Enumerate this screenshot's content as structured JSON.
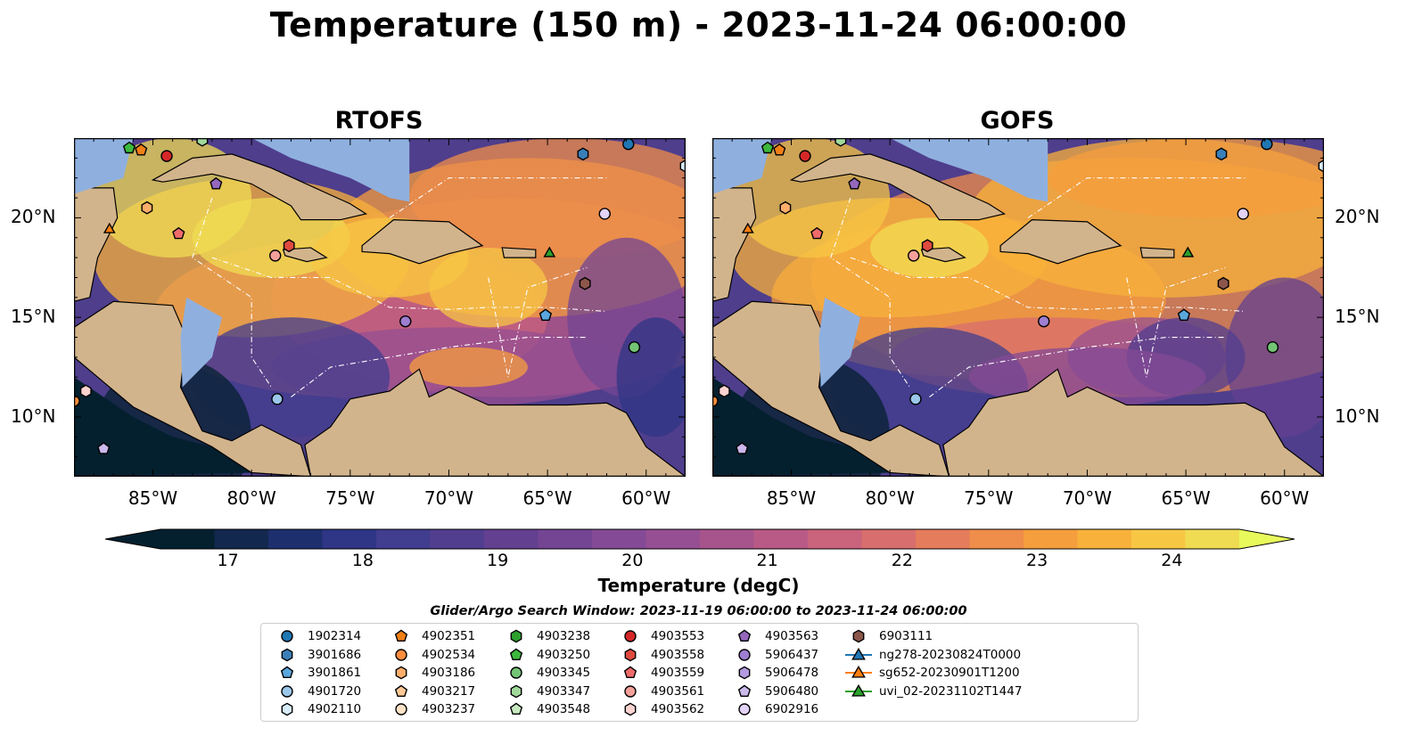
{
  "title": "Temperature (150 m) - 2023-11-24 06:00:00",
  "panels": [
    {
      "title": "RTOFS"
    },
    {
      "title": "GOFS"
    }
  ],
  "axes": {
    "lon_ticks": [
      "85°W",
      "80°W",
      "75°W",
      "70°W",
      "65°W",
      "60°W"
    ],
    "lat_ticks": [
      "20°N",
      "15°N",
      "10°N"
    ],
    "lon_range": [
      -89,
      -58
    ],
    "lat_range": [
      7,
      24
    ]
  },
  "colorbar": {
    "label": "Temperature (degC)",
    "ticks": [
      "17",
      "18",
      "19",
      "20",
      "21",
      "22",
      "23",
      "24"
    ],
    "range": [
      16.5,
      24.5
    ],
    "step": 0.5,
    "colormap": "thermal",
    "colors": [
      "#04202f",
      "#13284e",
      "#1e2f6e",
      "#2f3685",
      "#413d8f",
      "#523e8f",
      "#634090",
      "#734593",
      "#844a95",
      "#964f92",
      "#a8548c",
      "#b95a86",
      "#ca637c",
      "#d86e6e",
      "#e57c5c",
      "#ef8d4a",
      "#f59e3d",
      "#f8b23b",
      "#f7c744",
      "#f0dc53"
    ],
    "extend_low": "#04202f",
    "extend_high": "#e8fa5b"
  },
  "legend": {
    "title": "Glider/Argo Search Window: 2023-11-19 06:00:00 to 2023-11-24 06:00:00",
    "entries": [
      {
        "label": "1902314",
        "marker": "circle",
        "color": "#1f77b4"
      },
      {
        "label": "3901686",
        "marker": "hexagon",
        "color": "#3a7fb8"
      },
      {
        "label": "3901861",
        "marker": "pentagon",
        "color": "#5aa6dd"
      },
      {
        "label": "4901720",
        "marker": "circle",
        "color": "#9ac7ea"
      },
      {
        "label": "4902110",
        "marker": "hexagon",
        "color": "#d6ecf9"
      },
      {
        "label": "4902351",
        "marker": "pentagon",
        "color": "#f07f16"
      },
      {
        "label": "4902534",
        "marker": "circle",
        "color": "#fd8d3c"
      },
      {
        "label": "4903186",
        "marker": "hexagon",
        "color": "#fdae6b"
      },
      {
        "label": "4903217",
        "marker": "pentagon",
        "color": "#fdc896"
      },
      {
        "label": "4903237",
        "marker": "circle",
        "color": "#fde2c6"
      },
      {
        "label": "4903238",
        "marker": "hexagon",
        "color": "#2ca02c"
      },
      {
        "label": "4903250",
        "marker": "pentagon",
        "color": "#3cb83c"
      },
      {
        "label": "4903345",
        "marker": "circle",
        "color": "#74c476"
      },
      {
        "label": "4903347",
        "marker": "hexagon",
        "color": "#a1d99b"
      },
      {
        "label": "4903548",
        "marker": "pentagon",
        "color": "#c7e9c0"
      },
      {
        "label": "4903553",
        "marker": "circle",
        "color": "#d62728"
      },
      {
        "label": "4903558",
        "marker": "hexagon",
        "color": "#e04a3f"
      },
      {
        "label": "4903559",
        "marker": "pentagon",
        "color": "#ef6b6b"
      },
      {
        "label": "4903561",
        "marker": "circle",
        "color": "#f4a09a"
      },
      {
        "label": "4903562",
        "marker": "hexagon",
        "color": "#fbd3d0"
      },
      {
        "label": "4903563",
        "marker": "pentagon",
        "color": "#9467bd"
      },
      {
        "label": "5906437",
        "marker": "circle",
        "color": "#9e7fd1"
      },
      {
        "label": "5906478",
        "marker": "hexagon",
        "color": "#b49ae0"
      },
      {
        "label": "5906480",
        "marker": "pentagon",
        "color": "#cbb8ec"
      },
      {
        "label": "6902916",
        "marker": "circle",
        "color": "#e3d3f7"
      },
      {
        "label": "6903111",
        "marker": "hexagon",
        "color": "#8c564b"
      },
      {
        "label": "ng278-20230824T0000",
        "marker": "triangle-line",
        "color": "#1f77b4"
      },
      {
        "label": "sg652-20230901T1200",
        "marker": "triangle-line",
        "color": "#ff7f0e"
      },
      {
        "label": "uvi_02-20231102T1447",
        "marker": "triangle-line",
        "color": "#2ca02c"
      }
    ]
  },
  "markers_on_map": [
    {
      "id": "1902314",
      "lon": -60.9,
      "lat": 23.7
    },
    {
      "id": "3901686",
      "lon": -63.2,
      "lat": 23.2
    },
    {
      "id": "3901861",
      "lon": -65.1,
      "lat": 15.1
    },
    {
      "id": "4901720",
      "lon": -78.7,
      "lat": 10.9
    },
    {
      "id": "4902110",
      "lon": -58.0,
      "lat": 22.6
    },
    {
      "id": "4902351",
      "lon": -85.6,
      "lat": 23.4
    },
    {
      "id": "4903186",
      "lon": -85.3,
      "lat": 20.5
    },
    {
      "id": "4903250",
      "lon": -86.2,
      "lat": 23.5
    },
    {
      "id": "4903345",
      "lon": -60.6,
      "lat": 13.5
    },
    {
      "id": "4903347",
      "lon": -82.5,
      "lat": 23.9
    },
    {
      "id": "4903553",
      "lon": -84.3,
      "lat": 23.1
    },
    {
      "id": "4903558",
      "lon": -78.1,
      "lat": 18.6
    },
    {
      "id": "4903559",
      "lon": -83.7,
      "lat": 19.2
    },
    {
      "id": "4903561",
      "lon": -78.8,
      "lat": 18.1
    },
    {
      "id": "4903562",
      "lon": -88.4,
      "lat": 11.3
    },
    {
      "id": "4903563",
      "lon": -81.8,
      "lat": 21.7
    },
    {
      "id": "5906437",
      "lon": -72.2,
      "lat": 14.8
    },
    {
      "id": "5906480",
      "lon": -87.5,
      "lat": 8.4
    },
    {
      "id": "6902916",
      "lon": -62.1,
      "lat": 20.2
    },
    {
      "id": "6903111",
      "lon": -63.1,
      "lat": 16.7
    },
    {
      "id": "sg652-20230901T1200",
      "lon": -87.2,
      "lat": 19.4
    },
    {
      "id": "uvi_02-20231102T1447",
      "lon": -64.9,
      "lat": 18.2
    },
    {
      "id": "4902534",
      "lon": -89.0,
      "lat": 10.8
    }
  ]
}
